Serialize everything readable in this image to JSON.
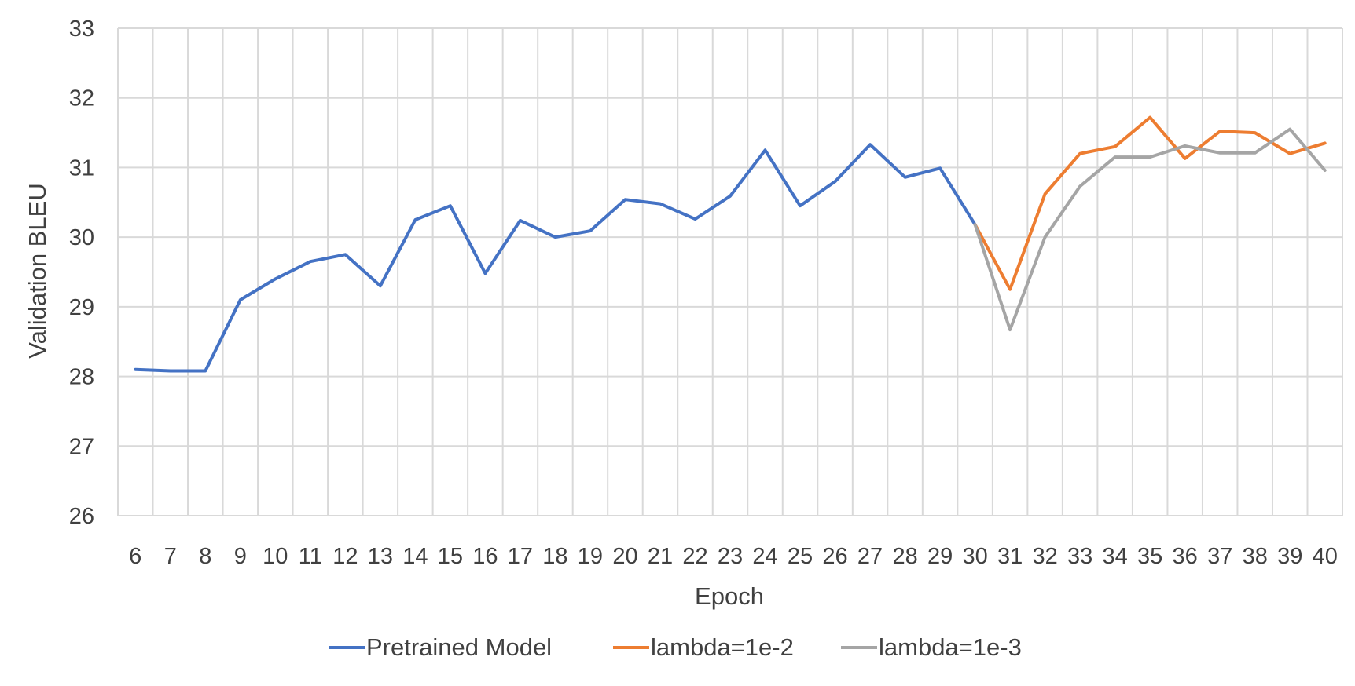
{
  "chart_data": {
    "type": "line",
    "title": "",
    "xlabel": "Epoch",
    "ylabel": "Validation BLEU",
    "x": [
      6,
      7,
      8,
      9,
      10,
      11,
      12,
      13,
      14,
      15,
      16,
      17,
      18,
      19,
      20,
      21,
      22,
      23,
      24,
      25,
      26,
      27,
      28,
      29,
      30,
      31,
      32,
      33,
      34,
      35,
      36,
      37,
      38,
      39,
      40
    ],
    "ylim": [
      26,
      33
    ],
    "yticks": [
      26,
      27,
      28,
      29,
      30,
      31,
      32,
      33
    ],
    "grid": "both",
    "legend_position": "bottom",
    "series": [
      {
        "name": "Pretrained Model",
        "color": "#4472C4",
        "values": [
          28.1,
          28.08,
          28.08,
          29.1,
          29.4,
          29.65,
          29.75,
          29.3,
          30.25,
          30.45,
          29.48,
          30.24,
          30.0,
          30.09,
          30.54,
          30.48,
          30.26,
          30.59,
          31.25,
          30.45,
          30.8,
          31.33,
          30.86,
          30.99,
          30.18,
          null,
          null,
          null,
          null,
          null,
          null,
          null,
          null,
          null,
          null
        ]
      },
      {
        "name": "lambda=1e-2",
        "color": "#ED7D31",
        "values": [
          null,
          null,
          null,
          null,
          null,
          null,
          null,
          null,
          null,
          null,
          null,
          null,
          null,
          null,
          null,
          null,
          null,
          null,
          null,
          null,
          null,
          null,
          null,
          null,
          30.18,
          29.25,
          30.62,
          31.2,
          31.3,
          31.72,
          31.13,
          31.52,
          31.5,
          31.2,
          31.35
        ]
      },
      {
        "name": "lambda=1e-3",
        "color": "#A5A5A5",
        "values": [
          null,
          null,
          null,
          null,
          null,
          null,
          null,
          null,
          null,
          null,
          null,
          null,
          null,
          null,
          null,
          null,
          null,
          null,
          null,
          null,
          null,
          null,
          null,
          null,
          30.18,
          28.67,
          30.0,
          30.73,
          31.15,
          31.15,
          31.31,
          31.21,
          31.21,
          31.55,
          30.96
        ]
      }
    ]
  }
}
